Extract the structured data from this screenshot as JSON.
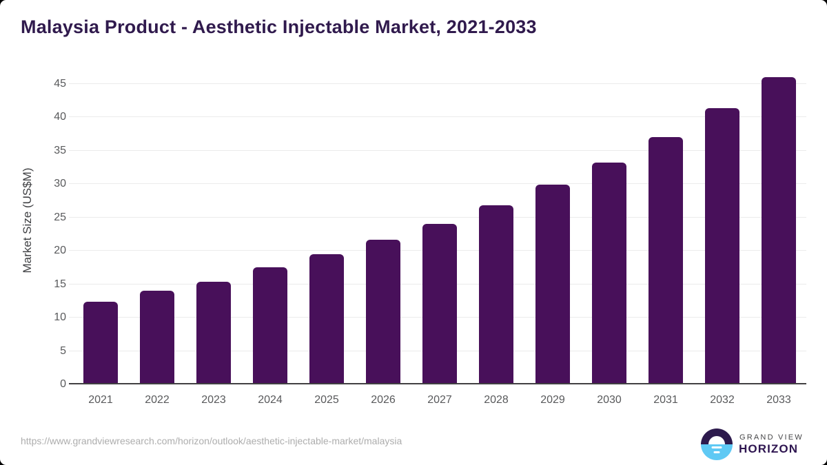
{
  "page": {
    "title": "Malaysia Product - Aesthetic Injectable Market, 2021-2033",
    "source_url": "https://www.grandviewresearch.com/horizon/outlook/aesthetic-injectable-market/malaysia"
  },
  "logo": {
    "icon": "horizon-sun-icon",
    "line1": "GRAND VIEW",
    "line2": "HORIZON"
  },
  "colors": {
    "bar": "#48105A",
    "title_text": "#301A4D",
    "axis_tick_text": "#58595B",
    "axis_title_text": "#3F4043",
    "gridline": "#EBEBEB",
    "axis_line": "#414042",
    "url_text": "#ADADAD",
    "logo_purple": "#2D1A4D",
    "logo_blue": "#5FC9F4"
  },
  "chart_data": {
    "type": "bar",
    "title": "Malaysia Product - Aesthetic Injectable Market, 2021-2033",
    "categories": [
      "2021",
      "2022",
      "2023",
      "2024",
      "2025",
      "2026",
      "2027",
      "2028",
      "2029",
      "2030",
      "2031",
      "2032",
      "2033"
    ],
    "values": [
      12.4,
      14.0,
      15.4,
      17.5,
      19.5,
      21.6,
      24.0,
      26.8,
      29.9,
      33.2,
      37.0,
      41.3,
      46.0
    ],
    "xlabel": "",
    "ylabel": "Market Size (US$M)",
    "ylim": [
      0,
      45
    ],
    "yticks": [
      0,
      5,
      10,
      15,
      20,
      25,
      30,
      35,
      40,
      45
    ],
    "grid": "horizontal-only",
    "legend": "none",
    "bar_color": "#48105A"
  }
}
